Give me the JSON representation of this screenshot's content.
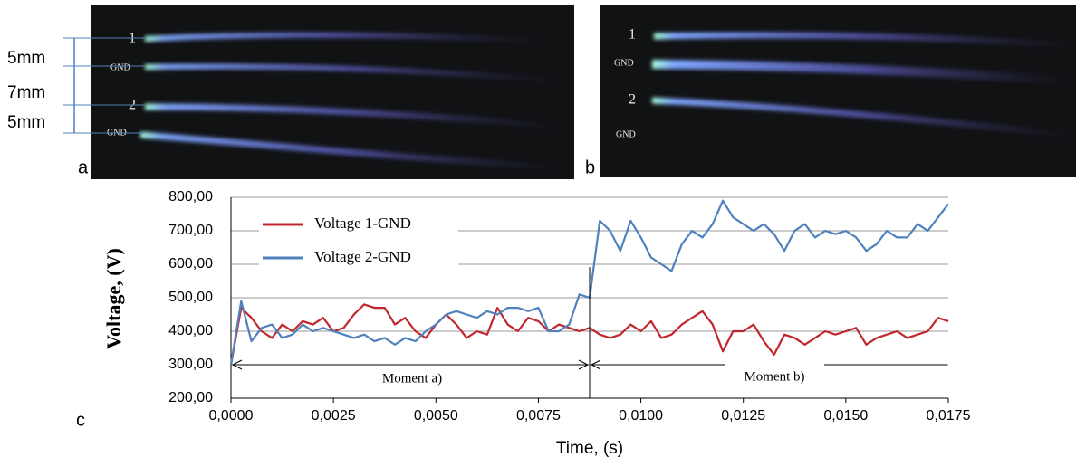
{
  "panels": {
    "a": {
      "label": "a",
      "electrodes": [
        "1",
        "GND",
        "2",
        "GND"
      ],
      "gaps": [
        "5mm",
        "7mm",
        "5mm"
      ]
    },
    "b": {
      "label": "b",
      "electrodes": [
        "1",
        "GND",
        "2",
        "GND"
      ]
    },
    "c": {
      "label": "c"
    }
  },
  "chart_data": {
    "type": "line",
    "xlabel": "Time, (s)",
    "ylabel": "Voltage, (V)",
    "annotations": [
      "Moment a)",
      "Moment b)"
    ],
    "legend": "upper left",
    "grid": true,
    "xlim": [
      0,
      0.0175
    ],
    "ylim": [
      200,
      800
    ],
    "xticks": [
      {
        "value": 0,
        "label": "0,0000"
      },
      {
        "value": 0.0025,
        "label": "0,0025"
      },
      {
        "value": 0.005,
        "label": "0,0050"
      },
      {
        "value": 0.0075,
        "label": "0,0075"
      },
      {
        "value": 0.01,
        "label": "0,0100"
      },
      {
        "value": 0.0125,
        "label": "0,0125"
      },
      {
        "value": 0.015,
        "label": "0,0150"
      },
      {
        "value": 0.0175,
        "label": "0,0175"
      }
    ],
    "yticks": [
      {
        "value": 200,
        "label": "200,00"
      },
      {
        "value": 300,
        "label": "300,00"
      },
      {
        "value": 400,
        "label": "400,00"
      },
      {
        "value": 500,
        "label": "500,00"
      },
      {
        "value": 600,
        "label": "600,00"
      },
      {
        "value": 700,
        "label": "700,00"
      },
      {
        "value": 800,
        "label": "800,00"
      }
    ],
    "x": [
      0,
      0.00025,
      0.0005,
      0.00075,
      0.001,
      0.00125,
      0.0015,
      0.00175,
      0.002,
      0.00225,
      0.0025,
      0.00275,
      0.003,
      0.00325,
      0.0035,
      0.00375,
      0.004,
      0.00425,
      0.0045,
      0.00475,
      0.005,
      0.00525,
      0.0055,
      0.00575,
      0.006,
      0.00625,
      0.0065,
      0.00675,
      0.007,
      0.00725,
      0.0075,
      0.00775,
      0.008,
      0.00825,
      0.0085,
      0.00875,
      0.009,
      0.00925,
      0.0095,
      0.00975,
      0.01,
      0.01025,
      0.0105,
      0.01075,
      0.011,
      0.01125,
      0.0115,
      0.01175,
      0.012,
      0.01225,
      0.0125,
      0.01275,
      0.013,
      0.01325,
      0.0135,
      0.01375,
      0.014,
      0.01425,
      0.0145,
      0.01475,
      0.015,
      0.01525,
      0.0155,
      0.01575,
      0.016,
      0.01625,
      0.0165,
      0.01675,
      0.017,
      0.01725,
      0.0175
    ],
    "series": [
      {
        "name": "Voltage 1-GND",
        "color": "#c0262d",
        "values": [
          300,
          470,
          440,
          400,
          380,
          420,
          400,
          430,
          420,
          440,
          400,
          410,
          450,
          480,
          470,
          470,
          420,
          440,
          400,
          380,
          420,
          450,
          420,
          380,
          400,
          390,
          470,
          420,
          400,
          440,
          430,
          400,
          420,
          410,
          400,
          410,
          390,
          380,
          390,
          420,
          400,
          430,
          380,
          390,
          420,
          440,
          460,
          420,
          340,
          400,
          400,
          420,
          370,
          330,
          390,
          380,
          360,
          380,
          400,
          390,
          400,
          410,
          360,
          380,
          390,
          400,
          380,
          390,
          400,
          440,
          430
        ]
      },
      {
        "name": "Voltage 2-GND",
        "color": "#4f81bd",
        "values": [
          300,
          490,
          370,
          410,
          420,
          380,
          390,
          420,
          400,
          410,
          400,
          390,
          380,
          390,
          370,
          380,
          360,
          380,
          370,
          400,
          420,
          450,
          460,
          450,
          440,
          460,
          450,
          470,
          470,
          460,
          470,
          400,
          400,
          420,
          510,
          500,
          730,
          700,
          640,
          730,
          680,
          620,
          600,
          580,
          660,
          700,
          680,
          720,
          790,
          740,
          720,
          700,
          720,
          690,
          640,
          700,
          720,
          680,
          700,
          690,
          700,
          680,
          640,
          660,
          700,
          680,
          680,
          720,
          700,
          740,
          780
        ]
      }
    ]
  }
}
